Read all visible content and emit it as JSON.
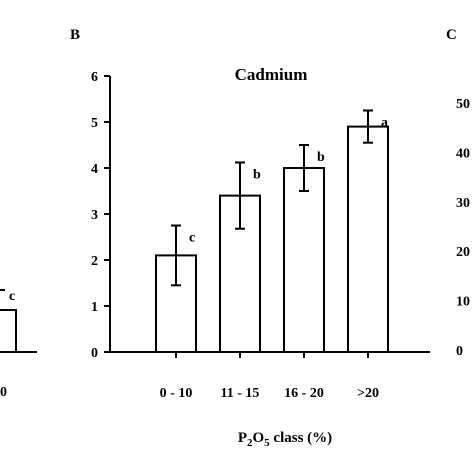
{
  "panels": {
    "left_fragment": {
      "visible_tick_label": "0",
      "visible_letter": "c",
      "visible_x_label": "0"
    },
    "right_fragment": {
      "panel_label": "C",
      "y_tick_labels": [
        "50",
        "40",
        "30",
        "20",
        "10",
        "0"
      ]
    }
  },
  "x_axis_label": {
    "prefix": "P",
    "sub1": "2",
    "mid": "O",
    "sub2": "5",
    "suffix": " class (%)"
  },
  "chart_data": {
    "type": "bar",
    "panel_label": "B",
    "title": "Cadmium",
    "categories": [
      "0 - 10",
      "11 - 15",
      "16 - 20",
      ">20"
    ],
    "values": [
      2.1,
      3.4,
      4.0,
      4.9
    ],
    "error": [
      0.65,
      0.72,
      0.5,
      0.35
    ],
    "letters": [
      "c",
      "b",
      "b",
      "a"
    ],
    "ylim": [
      0,
      6
    ],
    "yticks": [
      0,
      1,
      2,
      3,
      4,
      5,
      6
    ],
    "grid": false,
    "legend": "none",
    "bar_fill": "#ffffff",
    "bar_stroke": "#000000"
  }
}
